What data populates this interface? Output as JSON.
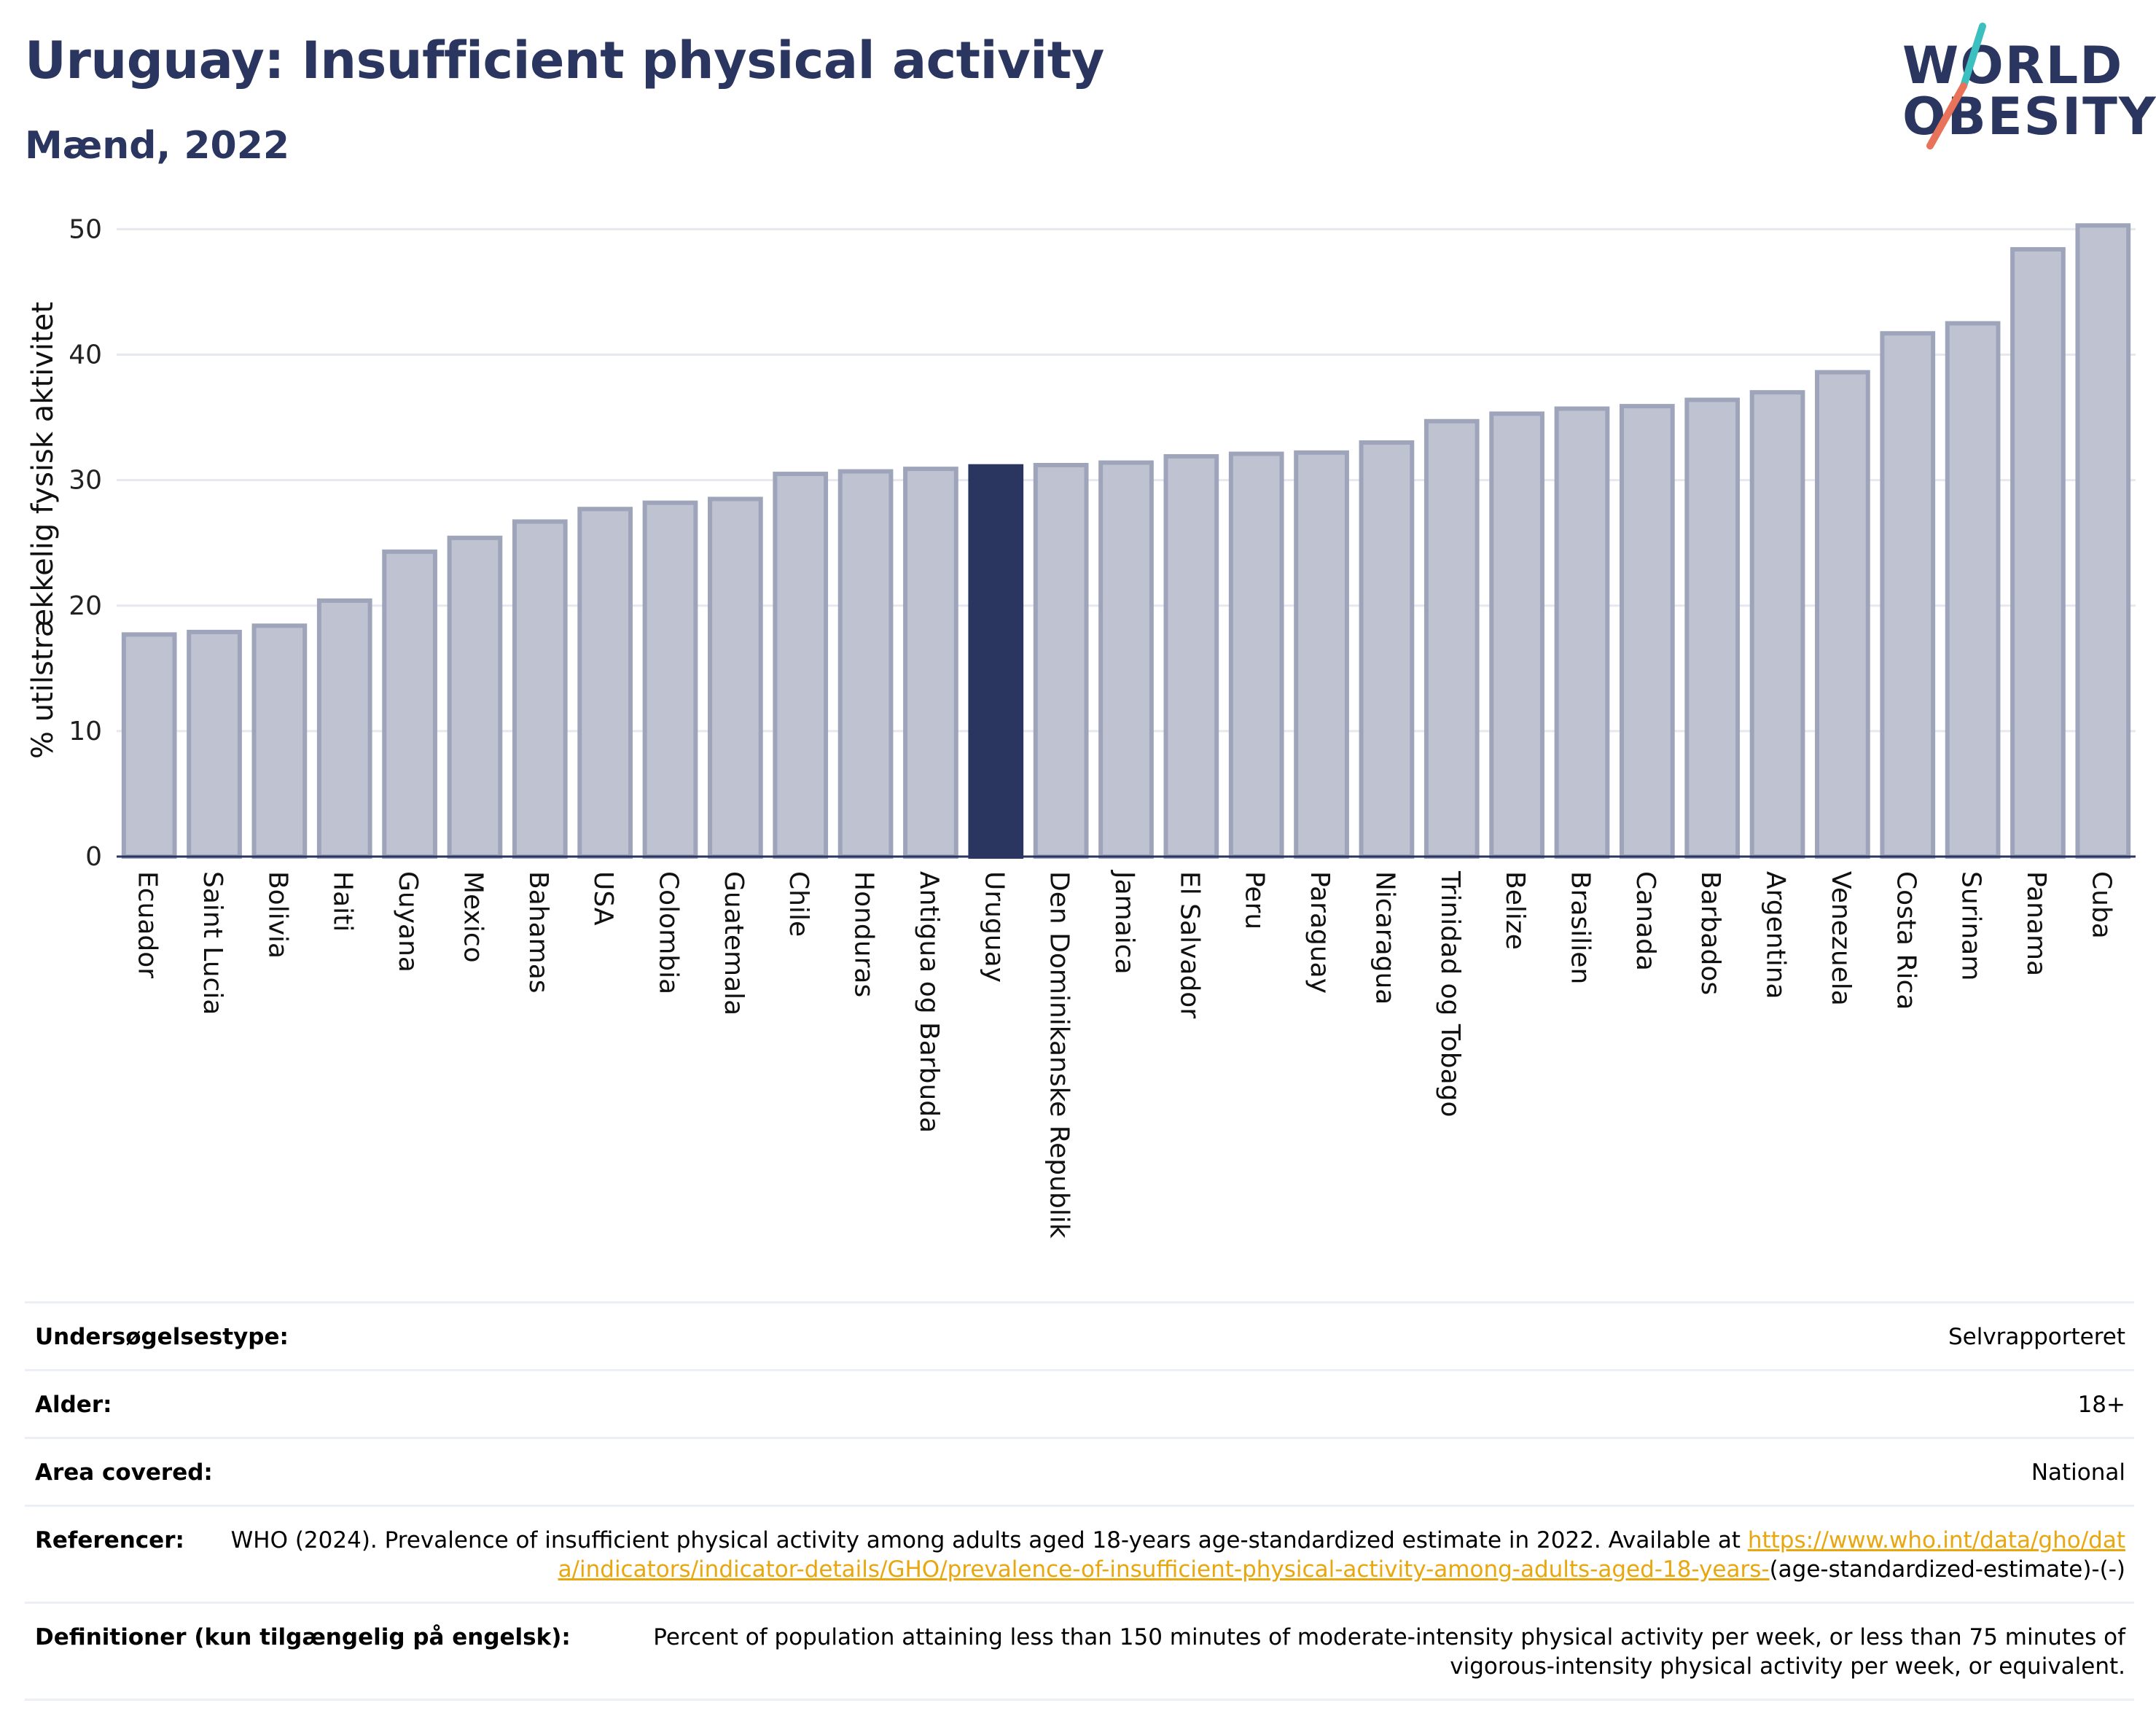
{
  "header": {
    "title": "Uruguay: Insufficient physical activity",
    "subtitle": "Mænd, 2022"
  },
  "logo": {
    "line1": "WORLD",
    "line2": "OBESITY",
    "text_color": "#2a3560",
    "slash_colors": [
      "#3bbfbf",
      "#e8735a"
    ]
  },
  "colors": {
    "highlight_bar": "#2a3560",
    "other_bar_fill": "#bfc3d1",
    "other_bar_stroke": "#9ea4ba",
    "axis": "#2a3560",
    "grid": "#e6e8ef",
    "link": "#e8a70e"
  },
  "chart_data": {
    "type": "bar",
    "title": "Uruguay: Insufficient physical activity",
    "subtitle": "Mænd, 2022",
    "ylabel": "% utilstrækkelig fysisk aktivitet",
    "xlabel": "",
    "ylim": [
      0,
      52
    ],
    "yticks": [
      0,
      10,
      20,
      30,
      40,
      50
    ],
    "grid": true,
    "highlight": "Uruguay",
    "categories": [
      "Ecuador",
      "Saint Lucia",
      "Bolivia",
      "Haiti",
      "Guyana",
      "Mexico",
      "Bahamas",
      "USA",
      "Colombia",
      "Guatemala",
      "Chile",
      "Honduras",
      "Antigua og Barbuda",
      "Uruguay",
      "Den Dominikanske Republik",
      "Jamaica",
      "El Salvador",
      "Peru",
      "Paraguay",
      "Nicaragua",
      "Trinidad og Tobago",
      "Belize",
      "Brasilien",
      "Canada",
      "Barbados",
      "Argentina",
      "Venezuela",
      "Costa Rica",
      "Surinam",
      "Panama",
      "Cuba"
    ],
    "values": [
      17.7,
      17.9,
      18.4,
      20.4,
      24.3,
      25.4,
      26.7,
      27.7,
      28.2,
      28.5,
      30.5,
      30.7,
      30.9,
      31.1,
      31.2,
      31.4,
      31.9,
      32.1,
      32.2,
      33.0,
      34.7,
      35.3,
      35.7,
      35.9,
      36.4,
      37.0,
      38.6,
      41.7,
      42.5,
      48.4,
      50.3
    ]
  },
  "meta": {
    "rows": [
      {
        "label": "Undersøgelsestype:",
        "value": "Selvrapporteret"
      },
      {
        "label": "Alder:",
        "value": "18+"
      },
      {
        "label": "Area covered:",
        "value": "National"
      },
      {
        "label": "Referencer:",
        "value_prefix": "WHO (2024). Prevalence of insufficient physical activity among adults aged 18-years age-standardized estimate in 2022. Available at ",
        "link": "https://www.who.int/data/gho/data/indicators/indicator-details/GHO/prevalence-of-insufficient-physical-activity-among-adults-aged-18-years-",
        "value_suffix": "(age-standardized-estimate)-(-)"
      },
      {
        "label": "Definitioner (kun tilgængelig på engelsk):",
        "value": "Percent of population attaining less than 150 minutes of moderate-intensity physical activity per week, or less than 75 minutes of vigorous-intensity physical activity per week, or equivalent."
      }
    ]
  }
}
